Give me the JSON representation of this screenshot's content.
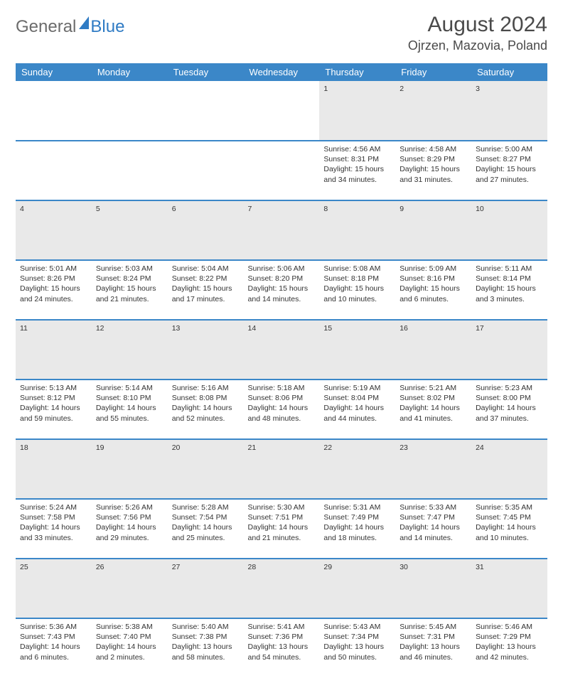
{
  "brand": {
    "name_a": "General",
    "name_b": "Blue"
  },
  "title": "August 2024",
  "location": "Ojrzen, Mazovia, Poland",
  "colors": {
    "header_bg": "#3b87c8",
    "header_text": "#ffffff",
    "row_divider": "#3b87c8",
    "daynum_bg": "#e9e9e9",
    "body_text": "#333333",
    "brand_grey": "#6b6b6b",
    "brand_blue": "#2f7bc4",
    "page_bg": "#ffffff"
  },
  "typography": {
    "title_fontsize": 30,
    "location_fontsize": 18,
    "weekday_fontsize": 13,
    "cell_fontsize": 10.5,
    "daynum_fontsize": 12
  },
  "layout": {
    "columns": 7,
    "weeks": 5
  },
  "weekdays": [
    "Sunday",
    "Monday",
    "Tuesday",
    "Wednesday",
    "Thursday",
    "Friday",
    "Saturday"
  ],
  "weeks": [
    [
      null,
      null,
      null,
      null,
      {
        "n": "1",
        "sunrise": "Sunrise: 4:56 AM",
        "sunset": "Sunset: 8:31 PM",
        "day1": "Daylight: 15 hours",
        "day2": "and 34 minutes."
      },
      {
        "n": "2",
        "sunrise": "Sunrise: 4:58 AM",
        "sunset": "Sunset: 8:29 PM",
        "day1": "Daylight: 15 hours",
        "day2": "and 31 minutes."
      },
      {
        "n": "3",
        "sunrise": "Sunrise: 5:00 AM",
        "sunset": "Sunset: 8:27 PM",
        "day1": "Daylight: 15 hours",
        "day2": "and 27 minutes."
      }
    ],
    [
      {
        "n": "4",
        "sunrise": "Sunrise: 5:01 AM",
        "sunset": "Sunset: 8:26 PM",
        "day1": "Daylight: 15 hours",
        "day2": "and 24 minutes."
      },
      {
        "n": "5",
        "sunrise": "Sunrise: 5:03 AM",
        "sunset": "Sunset: 8:24 PM",
        "day1": "Daylight: 15 hours",
        "day2": "and 21 minutes."
      },
      {
        "n": "6",
        "sunrise": "Sunrise: 5:04 AM",
        "sunset": "Sunset: 8:22 PM",
        "day1": "Daylight: 15 hours",
        "day2": "and 17 minutes."
      },
      {
        "n": "7",
        "sunrise": "Sunrise: 5:06 AM",
        "sunset": "Sunset: 8:20 PM",
        "day1": "Daylight: 15 hours",
        "day2": "and 14 minutes."
      },
      {
        "n": "8",
        "sunrise": "Sunrise: 5:08 AM",
        "sunset": "Sunset: 8:18 PM",
        "day1": "Daylight: 15 hours",
        "day2": "and 10 minutes."
      },
      {
        "n": "9",
        "sunrise": "Sunrise: 5:09 AM",
        "sunset": "Sunset: 8:16 PM",
        "day1": "Daylight: 15 hours",
        "day2": "and 6 minutes."
      },
      {
        "n": "10",
        "sunrise": "Sunrise: 5:11 AM",
        "sunset": "Sunset: 8:14 PM",
        "day1": "Daylight: 15 hours",
        "day2": "and 3 minutes."
      }
    ],
    [
      {
        "n": "11",
        "sunrise": "Sunrise: 5:13 AM",
        "sunset": "Sunset: 8:12 PM",
        "day1": "Daylight: 14 hours",
        "day2": "and 59 minutes."
      },
      {
        "n": "12",
        "sunrise": "Sunrise: 5:14 AM",
        "sunset": "Sunset: 8:10 PM",
        "day1": "Daylight: 14 hours",
        "day2": "and 55 minutes."
      },
      {
        "n": "13",
        "sunrise": "Sunrise: 5:16 AM",
        "sunset": "Sunset: 8:08 PM",
        "day1": "Daylight: 14 hours",
        "day2": "and 52 minutes."
      },
      {
        "n": "14",
        "sunrise": "Sunrise: 5:18 AM",
        "sunset": "Sunset: 8:06 PM",
        "day1": "Daylight: 14 hours",
        "day2": "and 48 minutes."
      },
      {
        "n": "15",
        "sunrise": "Sunrise: 5:19 AM",
        "sunset": "Sunset: 8:04 PM",
        "day1": "Daylight: 14 hours",
        "day2": "and 44 minutes."
      },
      {
        "n": "16",
        "sunrise": "Sunrise: 5:21 AM",
        "sunset": "Sunset: 8:02 PM",
        "day1": "Daylight: 14 hours",
        "day2": "and 41 minutes."
      },
      {
        "n": "17",
        "sunrise": "Sunrise: 5:23 AM",
        "sunset": "Sunset: 8:00 PM",
        "day1": "Daylight: 14 hours",
        "day2": "and 37 minutes."
      }
    ],
    [
      {
        "n": "18",
        "sunrise": "Sunrise: 5:24 AM",
        "sunset": "Sunset: 7:58 PM",
        "day1": "Daylight: 14 hours",
        "day2": "and 33 minutes."
      },
      {
        "n": "19",
        "sunrise": "Sunrise: 5:26 AM",
        "sunset": "Sunset: 7:56 PM",
        "day1": "Daylight: 14 hours",
        "day2": "and 29 minutes."
      },
      {
        "n": "20",
        "sunrise": "Sunrise: 5:28 AM",
        "sunset": "Sunset: 7:54 PM",
        "day1": "Daylight: 14 hours",
        "day2": "and 25 minutes."
      },
      {
        "n": "21",
        "sunrise": "Sunrise: 5:30 AM",
        "sunset": "Sunset: 7:51 PM",
        "day1": "Daylight: 14 hours",
        "day2": "and 21 minutes."
      },
      {
        "n": "22",
        "sunrise": "Sunrise: 5:31 AM",
        "sunset": "Sunset: 7:49 PM",
        "day1": "Daylight: 14 hours",
        "day2": "and 18 minutes."
      },
      {
        "n": "23",
        "sunrise": "Sunrise: 5:33 AM",
        "sunset": "Sunset: 7:47 PM",
        "day1": "Daylight: 14 hours",
        "day2": "and 14 minutes."
      },
      {
        "n": "24",
        "sunrise": "Sunrise: 5:35 AM",
        "sunset": "Sunset: 7:45 PM",
        "day1": "Daylight: 14 hours",
        "day2": "and 10 minutes."
      }
    ],
    [
      {
        "n": "25",
        "sunrise": "Sunrise: 5:36 AM",
        "sunset": "Sunset: 7:43 PM",
        "day1": "Daylight: 14 hours",
        "day2": "and 6 minutes."
      },
      {
        "n": "26",
        "sunrise": "Sunrise: 5:38 AM",
        "sunset": "Sunset: 7:40 PM",
        "day1": "Daylight: 14 hours",
        "day2": "and 2 minutes."
      },
      {
        "n": "27",
        "sunrise": "Sunrise: 5:40 AM",
        "sunset": "Sunset: 7:38 PM",
        "day1": "Daylight: 13 hours",
        "day2": "and 58 minutes."
      },
      {
        "n": "28",
        "sunrise": "Sunrise: 5:41 AM",
        "sunset": "Sunset: 7:36 PM",
        "day1": "Daylight: 13 hours",
        "day2": "and 54 minutes."
      },
      {
        "n": "29",
        "sunrise": "Sunrise: 5:43 AM",
        "sunset": "Sunset: 7:34 PM",
        "day1": "Daylight: 13 hours",
        "day2": "and 50 minutes."
      },
      {
        "n": "30",
        "sunrise": "Sunrise: 5:45 AM",
        "sunset": "Sunset: 7:31 PM",
        "day1": "Daylight: 13 hours",
        "day2": "and 46 minutes."
      },
      {
        "n": "31",
        "sunrise": "Sunrise: 5:46 AM",
        "sunset": "Sunset: 7:29 PM",
        "day1": "Daylight: 13 hours",
        "day2": "and 42 minutes."
      }
    ]
  ]
}
